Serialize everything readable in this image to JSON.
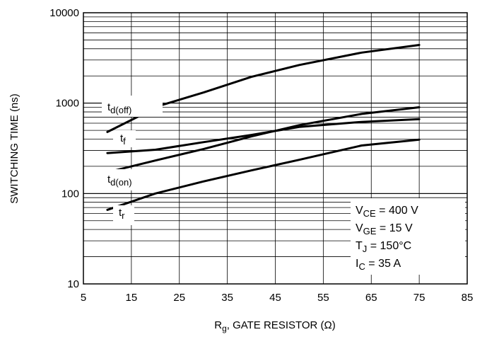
{
  "chart_data": {
    "type": "line",
    "xlabel": "R",
    "xlabel_sub": "g",
    "xlabel_rest": ", GATE RESISTOR (Ω)",
    "ylabel": "SWITCHING TIME (ns)",
    "xlim": [
      5,
      85
    ],
    "ylim": [
      10,
      10000
    ],
    "yscale": "log",
    "grid": true,
    "x_ticks": [
      5,
      15,
      25,
      35,
      45,
      55,
      65,
      75,
      85
    ],
    "x_tick_labels": [
      "5",
      "15",
      "25",
      "35",
      "45",
      "55",
      "65",
      "75",
      "85"
    ],
    "y_ticks": [
      10,
      100,
      1000,
      10000
    ],
    "y_tick_labels": [
      "10",
      "100",
      "1000",
      "10000"
    ],
    "series": [
      {
        "name": "t_d(off)",
        "label_main": "t",
        "label_sub": "d(off)",
        "x": [
          10,
          21,
          30,
          40,
          50,
          63,
          75
        ],
        "values": [
          480,
          940,
          1310,
          1950,
          2640,
          3620,
          4400
        ]
      },
      {
        "name": "t_f",
        "label_main": "t",
        "label_sub": "f",
        "x": [
          10,
          20,
          30,
          40,
          50,
          63,
          75
        ],
        "values": [
          280,
          305,
          370,
          445,
          545,
          620,
          665
        ]
      },
      {
        "name": "t_d(on)",
        "label_main": "t",
        "label_sub": "d(on)",
        "x": [
          10,
          20,
          30,
          40,
          50,
          63,
          75
        ],
        "values": [
          172,
          232,
          310,
          428,
          570,
          760,
          900
        ]
      },
      {
        "name": "t_r",
        "label_main": "t",
        "label_sub": "r",
        "x": [
          10,
          20,
          30,
          40,
          50,
          63,
          75
        ],
        "values": [
          66,
          100,
          136,
          180,
          236,
          340,
          395
        ]
      }
    ],
    "conditions": [
      {
        "main": "V",
        "sub": "CE",
        "rest": " = 400 V"
      },
      {
        "main": "V",
        "sub": "GE",
        "rest": " = 15 V"
      },
      {
        "main": "T",
        "sub": "J",
        "rest": " = 150°C"
      },
      {
        "main": "I",
        "sub": "C",
        "rest": " = 35 A"
      }
    ],
    "colors": {
      "line": "#000000",
      "grid": "#000000",
      "background": "#ffffff"
    }
  }
}
